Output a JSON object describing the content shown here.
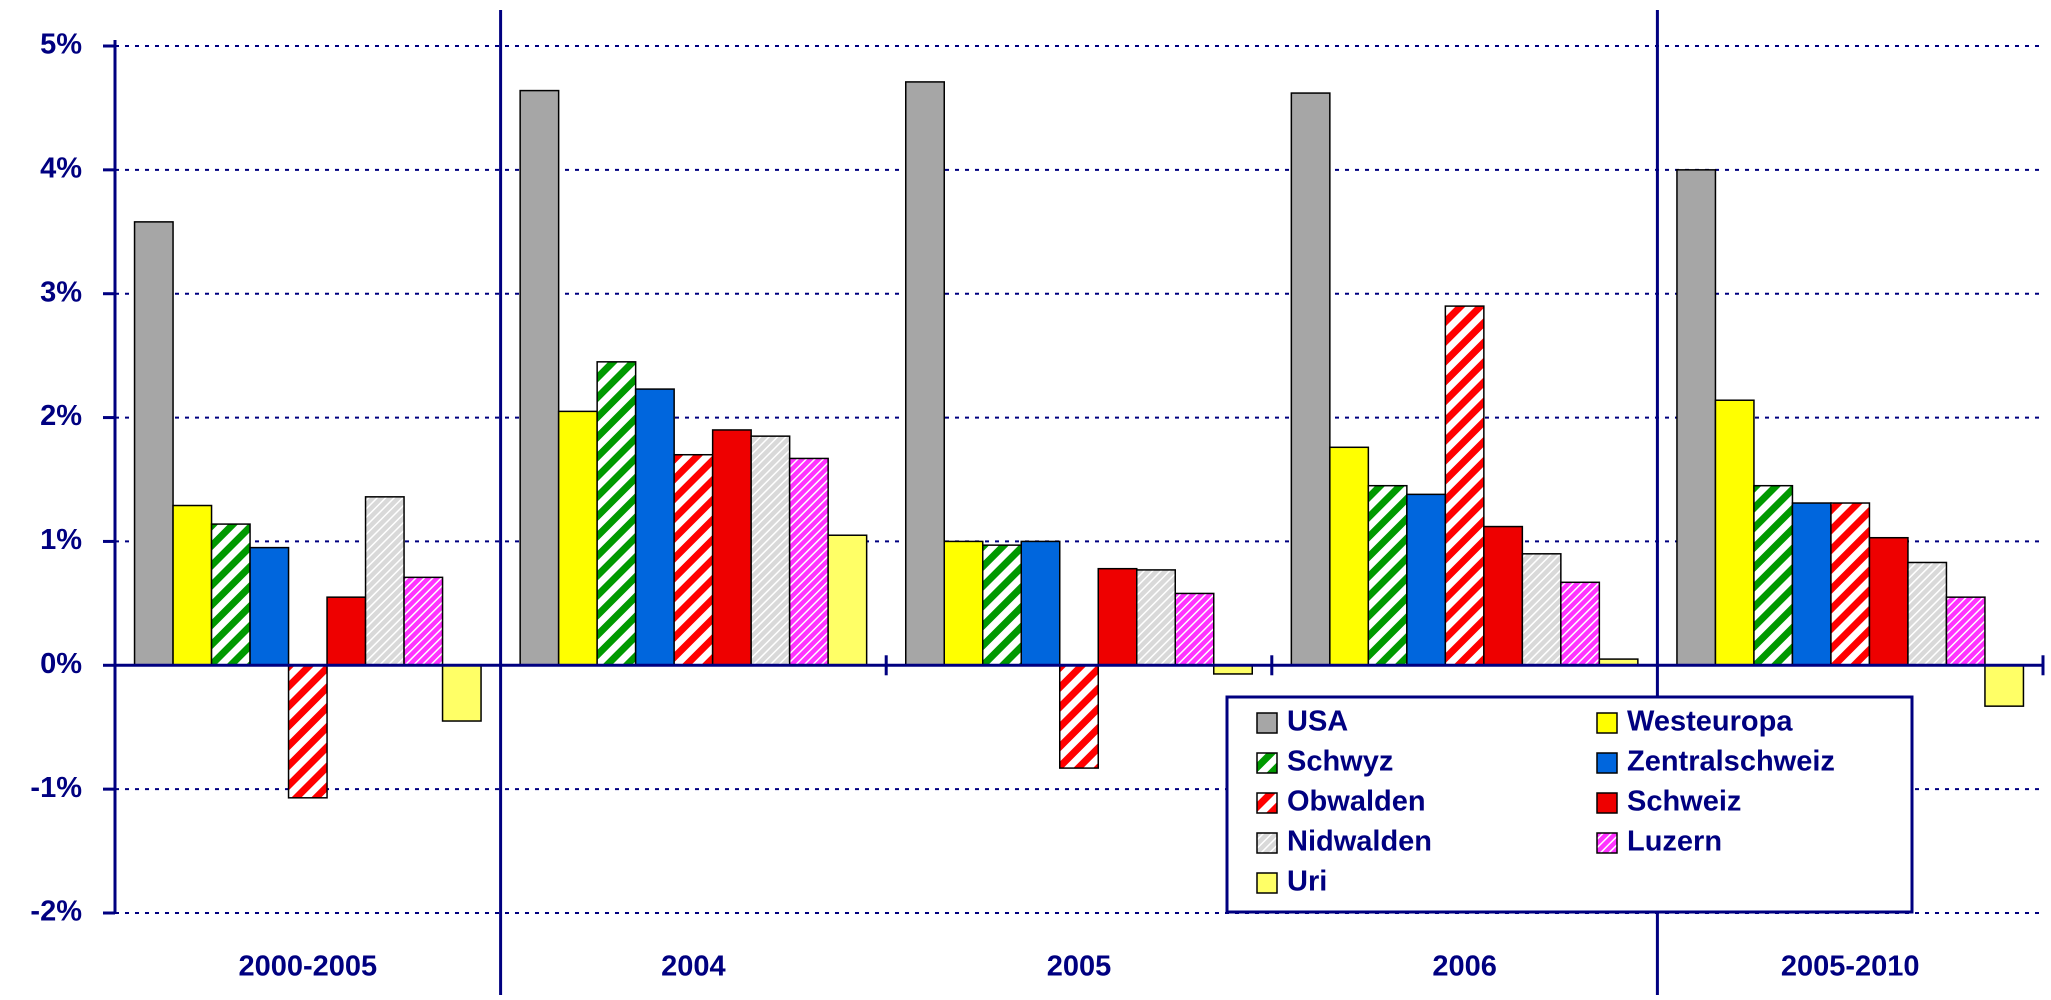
{
  "chart_data": {
    "type": "bar",
    "categories": [
      "2000-2005",
      "2004",
      "2005",
      "2006",
      "2005-2010"
    ],
    "ylim": [
      -2,
      5
    ],
    "yticks": [
      {
        "value": -2,
        "label": "-2%"
      },
      {
        "value": -1,
        "label": "-1%"
      },
      {
        "value": 0,
        "label": "0%"
      },
      {
        "value": 1,
        "label": "1%"
      },
      {
        "value": 2,
        "label": "2%"
      },
      {
        "value": 3,
        "label": "3%"
      },
      {
        "value": 4,
        "label": "4%"
      },
      {
        "value": 5,
        "label": "5%"
      }
    ],
    "grid": true,
    "legend": "bottom-right",
    "series": [
      {
        "name": "USA",
        "color": "#a6a6a6",
        "values": [
          3.58,
          4.64,
          4.71,
          4.62,
          4.0
        ]
      },
      {
        "name": "Westeuropa",
        "color": "#ffff00",
        "values": [
          1.29,
          2.05,
          1.0,
          1.76,
          2.14
        ]
      },
      {
        "name": "Schwyz",
        "color": "#009900",
        "pattern": "wide",
        "values": [
          1.14,
          2.45,
          0.97,
          1.45,
          1.45
        ]
      },
      {
        "name": "Zentralschweiz",
        "color": "#0066dd",
        "values": [
          0.95,
          2.23,
          1.0,
          1.38,
          1.31
        ]
      },
      {
        "name": "Obwalden",
        "color": "#ff0000",
        "pattern": "wide",
        "values": [
          -1.07,
          1.7,
          -0.83,
          2.9,
          1.31
        ]
      },
      {
        "name": "Schweiz",
        "color": "#ee0000",
        "values": [
          0.55,
          1.9,
          0.78,
          1.12,
          1.03
        ]
      },
      {
        "name": "Nidwalden",
        "color": "#d9d9d9",
        "pattern": "fine",
        "values": [
          1.36,
          1.85,
          0.77,
          0.9,
          0.83
        ]
      },
      {
        "name": "Luzern",
        "color": "#ff33ff",
        "pattern": "fine",
        "values": [
          0.71,
          1.67,
          0.58,
          0.67,
          0.55
        ]
      },
      {
        "name": "Uri",
        "color": "#ffff66",
        "values": [
          -0.45,
          1.05,
          -0.07,
          0.05,
          -0.33
        ]
      }
    ]
  }
}
